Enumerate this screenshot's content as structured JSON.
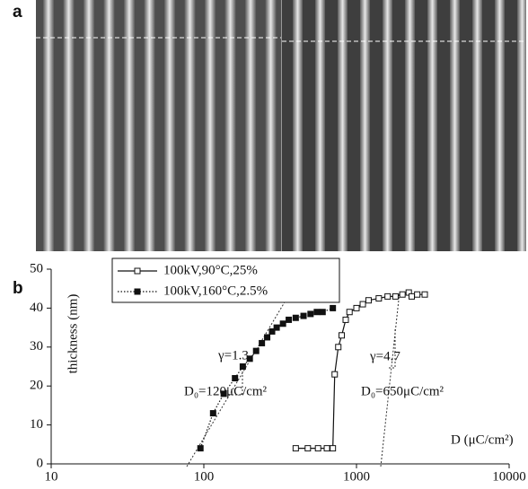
{
  "panel_a_label": "a",
  "chart_data": {
    "type": "scatter",
    "panel_label": "b",
    "ylabel": "thickness (nm)",
    "xlabel": "D (μC/cm²)",
    "xscale": "log",
    "xlim": [
      10,
      10000
    ],
    "xticks": [
      10,
      100,
      1000,
      10000
    ],
    "ylim": [
      0,
      50
    ],
    "yticks": [
      0,
      10,
      20,
      30,
      40,
      50
    ],
    "annotations": [
      "γ=1.3",
      "D₀=120μC/cm²",
      "γ=4.7",
      "D₀=650μC/cm²"
    ],
    "series": [
      {
        "name": "100kV,90°C,25%",
        "color": "#111111",
        "marker": "open",
        "line": "solid",
        "x": [
          400,
          480,
          560,
          640,
          700,
          720,
          760,
          800,
          850,
          900,
          1000,
          1100,
          1200,
          1400,
          1600,
          1800,
          2000,
          2200,
          2300,
          2500,
          2800
        ],
        "values": [
          4,
          4,
          4,
          4,
          4,
          23,
          30,
          33,
          37,
          39,
          40,
          41,
          42,
          42.5,
          43,
          43,
          43.5,
          44,
          43,
          43.5,
          43.5
        ]
      },
      {
        "name": "100kV,160°C,2.5%",
        "color": "#111111",
        "marker": "filled",
        "line": "dotted",
        "x": [
          95,
          115,
          135,
          160,
          180,
          200,
          220,
          240,
          260,
          280,
          300,
          330,
          360,
          400,
          450,
          500,
          550,
          600,
          700
        ],
        "values": [
          4,
          13,
          18,
          22,
          25,
          27,
          29,
          31,
          32.5,
          34,
          35,
          36,
          37,
          37.5,
          38,
          38.5,
          39,
          39,
          40
        ]
      }
    ]
  }
}
